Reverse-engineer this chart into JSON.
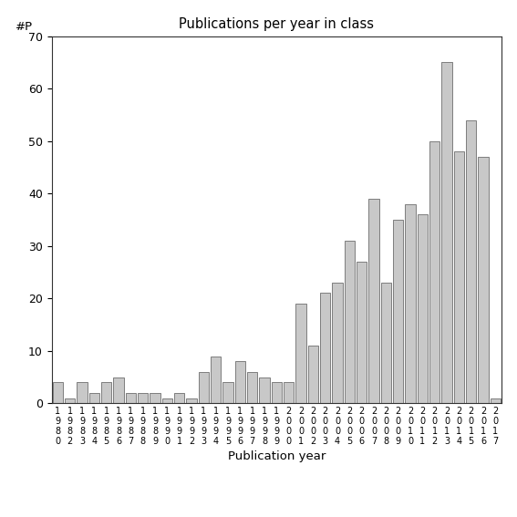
{
  "title": "Publications per year in class",
  "xlabel": "Publication year",
  "ylabel": "#P",
  "ylim": [
    0,
    70
  ],
  "yticks": [
    0,
    10,
    20,
    30,
    40,
    50,
    60,
    70
  ],
  "bar_color": "#c8c8c8",
  "bar_edgecolor": "#555555",
  "categories": [
    "1980",
    "1982",
    "1983",
    "1984",
    "1985",
    "1986",
    "1987",
    "1988",
    "1989",
    "1990",
    "1991",
    "1992",
    "1993",
    "1994",
    "1995",
    "1996",
    "1997",
    "1998",
    "1999",
    "2000",
    "2001",
    "2002",
    "2003",
    "2004",
    "2005",
    "2006",
    "2007",
    "2008",
    "2009",
    "2010",
    "2011",
    "2012",
    "2013",
    "2014",
    "2015",
    "2016",
    "2017"
  ],
  "values": [
    4,
    1,
    4,
    2,
    4,
    5,
    2,
    2,
    2,
    1,
    2,
    1,
    6,
    9,
    4,
    8,
    6,
    5,
    4,
    4,
    19,
    11,
    21,
    23,
    31,
    27,
    39,
    23,
    35,
    38,
    36,
    50,
    65,
    48,
    54,
    47,
    1
  ],
  "background_color": "#ffffff",
  "figsize": [
    5.67,
    5.67
  ],
  "dpi": 100
}
